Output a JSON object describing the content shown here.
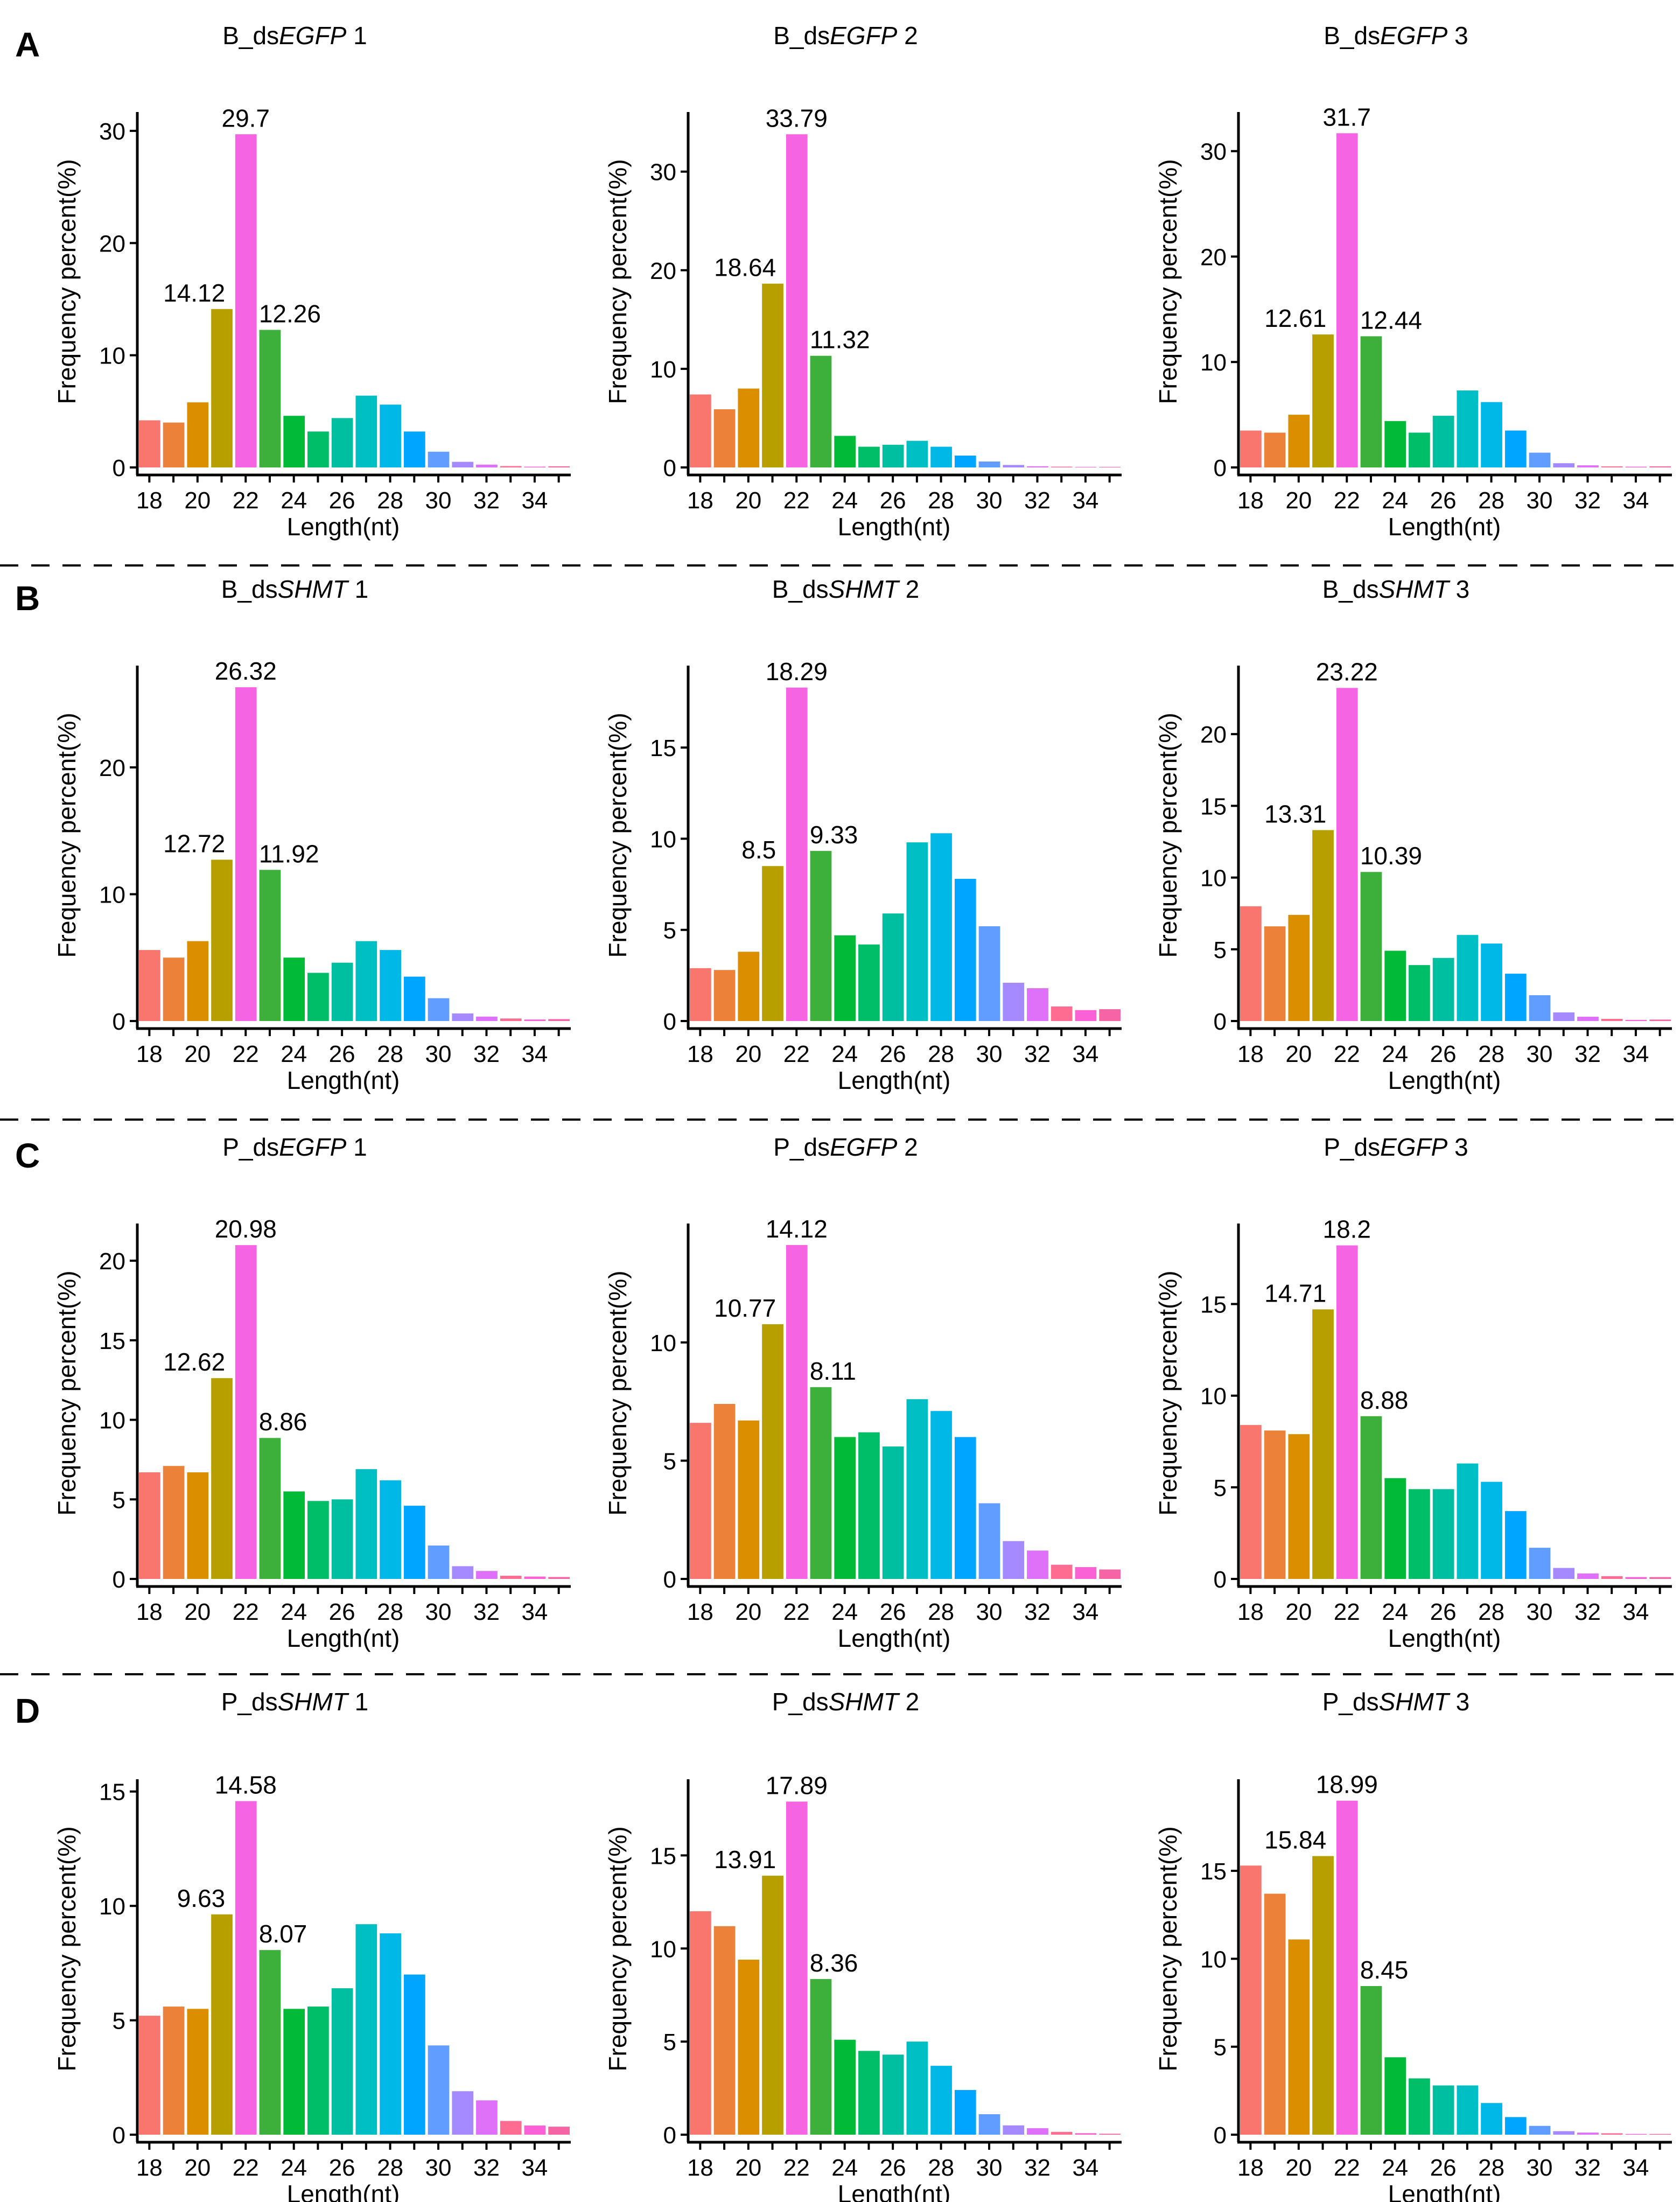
{
  "x_axis_label": "Length(nt)",
  "y_axis_label": "Frequency percent(%)",
  "chart_data": [
    {
      "type": "bar",
      "row": "A",
      "title": "B_dsEGFP 1",
      "title_prefix": "B_ds",
      "title_gene": "EGFP",
      "title_suffix": " 1",
      "show_row_label": true,
      "categories": [
        18,
        19,
        20,
        21,
        22,
        23,
        24,
        25,
        26,
        27,
        28,
        29,
        30,
        31,
        32,
        33,
        34,
        35
      ],
      "values": [
        4.2,
        4.0,
        5.8,
        14.12,
        29.7,
        12.26,
        4.6,
        3.2,
        4.4,
        6.4,
        5.6,
        3.2,
        1.4,
        0.5,
        0.25,
        0.12,
        0.07,
        0.1
      ],
      "labels": {
        "21": "14.12",
        "22": "29.7",
        "23": "12.26"
      },
      "ylim": [
        0,
        31.2
      ],
      "yticks": [
        0,
        10,
        20,
        30
      ],
      "xticks": [
        18,
        20,
        22,
        24,
        26,
        28,
        30,
        32,
        34
      ],
      "xlabel": "Length(nt)",
      "ylabel": "Frequency percent(%)"
    },
    {
      "type": "bar",
      "row": "A",
      "title": "B_dsEGFP 2",
      "title_prefix": "B_ds",
      "title_gene": "EGFP",
      "title_suffix": " 2",
      "show_row_label": false,
      "categories": [
        18,
        19,
        20,
        21,
        22,
        23,
        24,
        25,
        26,
        27,
        28,
        29,
        30,
        31,
        32,
        33,
        34,
        35
      ],
      "values": [
        7.4,
        5.9,
        8.0,
        18.64,
        33.79,
        11.32,
        3.2,
        2.1,
        2.3,
        2.7,
        2.1,
        1.2,
        0.6,
        0.25,
        0.12,
        0.08,
        0.05,
        0.05
      ],
      "labels": {
        "21": "18.64",
        "22": "33.79",
        "23": "11.32"
      },
      "ylim": [
        0,
        35.5
      ],
      "yticks": [
        0,
        10,
        20,
        30
      ],
      "xticks": [
        18,
        20,
        22,
        24,
        26,
        28,
        30,
        32,
        34
      ],
      "xlabel": "Length(nt)",
      "ylabel": "Frequency percent(%)"
    },
    {
      "type": "bar",
      "row": "A",
      "title": "B_dsEGFP 3",
      "title_prefix": "B_ds",
      "title_gene": "EGFP",
      "title_suffix": " 3",
      "show_row_label": false,
      "categories": [
        18,
        19,
        20,
        21,
        22,
        23,
        24,
        25,
        26,
        27,
        28,
        29,
        30,
        31,
        32,
        33,
        34,
        35
      ],
      "values": [
        3.5,
        3.3,
        5.0,
        12.61,
        31.7,
        12.44,
        4.4,
        3.3,
        4.9,
        7.3,
        6.2,
        3.5,
        1.4,
        0.4,
        0.2,
        0.1,
        0.07,
        0.1
      ],
      "labels": {
        "21": "12.61",
        "22": "31.7",
        "23": "12.44"
      },
      "ylim": [
        0,
        33.2
      ],
      "yticks": [
        0,
        10,
        20,
        30
      ],
      "xticks": [
        18,
        20,
        22,
        24,
        26,
        28,
        30,
        32,
        34
      ],
      "xlabel": "Length(nt)",
      "ylabel": "Frequency percent(%)"
    },
    {
      "type": "bar",
      "row": "B",
      "title": "B_dsSHMT 1",
      "title_prefix": "B_ds",
      "title_gene": "SHMT",
      "title_suffix": " 1",
      "show_row_label": true,
      "categories": [
        18,
        19,
        20,
        21,
        22,
        23,
        24,
        25,
        26,
        27,
        28,
        29,
        30,
        31,
        32,
        33,
        34,
        35
      ],
      "values": [
        5.6,
        5.0,
        6.3,
        12.72,
        26.32,
        11.92,
        5.0,
        3.8,
        4.6,
        6.3,
        5.6,
        3.5,
        1.8,
        0.6,
        0.35,
        0.2,
        0.12,
        0.15
      ],
      "labels": {
        "21": "12.72",
        "22": "26.32",
        "23": "11.92"
      },
      "ylim": [
        0,
        27.6
      ],
      "yticks": [
        0,
        10,
        20
      ],
      "xticks": [
        18,
        20,
        22,
        24,
        26,
        28,
        30,
        32,
        34
      ],
      "xlabel": "Length(nt)",
      "ylabel": "Frequency percent(%)"
    },
    {
      "type": "bar",
      "row": "B",
      "title": "B_dsSHMT 2",
      "title_prefix": "B_ds",
      "title_gene": "SHMT",
      "title_suffix": " 2",
      "show_row_label": false,
      "categories": [
        18,
        19,
        20,
        21,
        22,
        23,
        24,
        25,
        26,
        27,
        28,
        29,
        30,
        31,
        32,
        33,
        34,
        35
      ],
      "values": [
        2.9,
        2.8,
        3.8,
        8.5,
        18.29,
        9.33,
        4.7,
        4.2,
        5.9,
        9.8,
        10.3,
        7.8,
        5.2,
        2.1,
        1.8,
        0.8,
        0.6,
        0.65
      ],
      "labels": {
        "21": "8.5",
        "22": "18.29",
        "23": "9.33"
      },
      "ylim": [
        0,
        19.2
      ],
      "yticks": [
        0,
        5,
        10,
        15
      ],
      "xticks": [
        18,
        20,
        22,
        24,
        26,
        28,
        30,
        32,
        34
      ],
      "xlabel": "Length(nt)",
      "ylabel": "Frequency percent(%)"
    },
    {
      "type": "bar",
      "row": "B",
      "title": "B_dsSHMT 3",
      "title_prefix": "B_ds",
      "title_gene": "SHMT",
      "title_suffix": " 3",
      "show_row_label": false,
      "categories": [
        18,
        19,
        20,
        21,
        22,
        23,
        24,
        25,
        26,
        27,
        28,
        29,
        30,
        31,
        32,
        33,
        34,
        35
      ],
      "values": [
        8.0,
        6.6,
        7.4,
        13.31,
        23.22,
        10.39,
        4.9,
        3.9,
        4.4,
        6.0,
        5.4,
        3.3,
        1.8,
        0.6,
        0.3,
        0.15,
        0.08,
        0.1
      ],
      "labels": {
        "21": "13.31",
        "22": "23.22",
        "23": "10.39"
      },
      "ylim": [
        0,
        24.4
      ],
      "yticks": [
        0,
        5,
        10,
        15,
        20
      ],
      "xticks": [
        18,
        20,
        22,
        24,
        26,
        28,
        30,
        32,
        34
      ],
      "xlabel": "Length(nt)",
      "ylabel": "Frequency percent(%)"
    },
    {
      "type": "bar",
      "row": "C",
      "title": "P_dsEGFP 1",
      "title_prefix": "P_ds",
      "title_gene": "EGFP",
      "title_suffix": " 1",
      "show_row_label": true,
      "categories": [
        18,
        19,
        20,
        21,
        22,
        23,
        24,
        25,
        26,
        27,
        28,
        29,
        30,
        31,
        32,
        33,
        34,
        35
      ],
      "values": [
        6.7,
        7.1,
        6.7,
        12.62,
        20.98,
        8.86,
        5.5,
        4.9,
        5.0,
        6.9,
        6.2,
        4.6,
        2.1,
        0.8,
        0.5,
        0.2,
        0.15,
        0.12
      ],
      "labels": {
        "21": "12.62",
        "22": "20.98",
        "23": "8.86"
      },
      "ylim": [
        0,
        22.0
      ],
      "yticks": [
        0,
        5,
        10,
        15,
        20
      ],
      "xticks": [
        18,
        20,
        22,
        24,
        26,
        28,
        30,
        32,
        34
      ],
      "xlabel": "Length(nt)",
      "ylabel": "Frequency percent(%)"
    },
    {
      "type": "bar",
      "row": "C",
      "title": "P_dsEGFP 2",
      "title_prefix": "P_ds",
      "title_gene": "EGFP",
      "title_suffix": " 2",
      "show_row_label": false,
      "categories": [
        18,
        19,
        20,
        21,
        22,
        23,
        24,
        25,
        26,
        27,
        28,
        29,
        30,
        31,
        32,
        33,
        34,
        35
      ],
      "values": [
        6.6,
        7.4,
        6.7,
        10.77,
        14.12,
        8.11,
        6.0,
        6.2,
        5.6,
        7.6,
        7.1,
        6.0,
        3.2,
        1.6,
        1.2,
        0.6,
        0.5,
        0.4
      ],
      "labels": {
        "21": "10.77",
        "22": "14.12",
        "23": "8.11"
      },
      "ylim": [
        0,
        14.8
      ],
      "yticks": [
        0,
        5,
        10
      ],
      "xticks": [
        18,
        20,
        22,
        24,
        26,
        28,
        30,
        32,
        34
      ],
      "xlabel": "Length(nt)",
      "ylabel": "Frequency percent(%)"
    },
    {
      "type": "bar",
      "row": "C",
      "title": "P_dsEGFP 3",
      "title_prefix": "P_ds",
      "title_gene": "EGFP",
      "title_suffix": " 3",
      "show_row_label": false,
      "categories": [
        18,
        19,
        20,
        21,
        22,
        23,
        24,
        25,
        26,
        27,
        28,
        29,
        30,
        31,
        32,
        33,
        34,
        35
      ],
      "values": [
        8.4,
        8.1,
        7.9,
        14.71,
        18.2,
        8.88,
        5.5,
        4.9,
        4.9,
        6.3,
        5.3,
        3.7,
        1.7,
        0.6,
        0.3,
        0.15,
        0.1,
        0.1
      ],
      "labels": {
        "21": "14.71",
        "22": "18.2",
        "23": "8.88"
      },
      "ylim": [
        0,
        19.1
      ],
      "yticks": [
        0,
        5,
        10,
        15
      ],
      "xticks": [
        18,
        20,
        22,
        24,
        26,
        28,
        30,
        32,
        34
      ],
      "xlabel": "Length(nt)",
      "ylabel": "Frequency percent(%)"
    },
    {
      "type": "bar",
      "row": "D",
      "title": "P_dsSHMT 1",
      "title_prefix": "P_ds",
      "title_gene": "SHMT",
      "title_suffix": " 1",
      "show_row_label": true,
      "categories": [
        18,
        19,
        20,
        21,
        22,
        23,
        24,
        25,
        26,
        27,
        28,
        29,
        30,
        31,
        32,
        33,
        34,
        35
      ],
      "values": [
        5.2,
        5.6,
        5.5,
        9.63,
        14.58,
        8.07,
        5.5,
        5.6,
        6.4,
        9.2,
        8.8,
        7.0,
        3.9,
        1.9,
        1.5,
        0.6,
        0.4,
        0.35
      ],
      "labels": {
        "21": "9.63",
        "22": "14.58",
        "23": "8.07"
      },
      "ylim": [
        0,
        15.3
      ],
      "yticks": [
        0,
        5,
        10,
        15
      ],
      "xticks": [
        18,
        20,
        22,
        24,
        26,
        28,
        30,
        32,
        34
      ],
      "xlabel": "Length(nt)",
      "ylabel": "Frequency percent(%)"
    },
    {
      "type": "bar",
      "row": "D",
      "title": "P_dsSHMT 2",
      "title_prefix": "P_ds",
      "title_gene": "SHMT",
      "title_suffix": " 2",
      "show_row_label": false,
      "categories": [
        18,
        19,
        20,
        21,
        22,
        23,
        24,
        25,
        26,
        27,
        28,
        29,
        30,
        31,
        32,
        33,
        34,
        35
      ],
      "values": [
        12.0,
        11.2,
        9.4,
        13.91,
        17.89,
        8.36,
        5.1,
        4.5,
        4.3,
        5.0,
        3.7,
        2.4,
        1.1,
        0.5,
        0.35,
        0.15,
        0.08,
        0.05
      ],
      "labels": {
        "21": "13.91",
        "22": "17.89",
        "23": "8.36"
      },
      "ylim": [
        0,
        18.8
      ],
      "yticks": [
        0,
        5,
        10,
        15
      ],
      "xticks": [
        18,
        20,
        22,
        24,
        26,
        28,
        30,
        32,
        34
      ],
      "xlabel": "Length(nt)",
      "ylabel": "Frequency percent(%)"
    },
    {
      "type": "bar",
      "row": "D",
      "title": "P_dsSHMT 3",
      "title_prefix": "P_ds",
      "title_gene": "SHMT",
      "title_suffix": " 3",
      "show_row_label": false,
      "categories": [
        18,
        19,
        20,
        21,
        22,
        23,
        24,
        25,
        26,
        27,
        28,
        29,
        30,
        31,
        32,
        33,
        34,
        35
      ],
      "values": [
        15.3,
        13.7,
        11.1,
        15.84,
        18.99,
        8.45,
        4.4,
        3.2,
        2.8,
        2.8,
        1.8,
        1.0,
        0.5,
        0.2,
        0.12,
        0.08,
        0.04,
        0.04
      ],
      "labels": {
        "21": "15.84",
        "22": "18.99",
        "23": "8.45"
      },
      "ylim": [
        0,
        19.9
      ],
      "yticks": [
        0,
        5,
        10,
        15
      ],
      "xticks": [
        18,
        20,
        22,
        24,
        26,
        28,
        30,
        32,
        34
      ],
      "xlabel": "Length(nt)",
      "ylabel": "Frequency percent(%)"
    }
  ],
  "bar_colors": [
    "#F8766D",
    "#EC8239",
    "#DB8E00",
    "#B79F00",
    "#F564E3",
    "#3CB03A",
    "#00BA38",
    "#00BE67",
    "#00BFA1",
    "#00BFC4",
    "#00B8E7",
    "#00A5FF",
    "#619CFF",
    "#A58AFF",
    "#DF70F8",
    "#FF6C91",
    "#FB61D7",
    "#F664A5"
  ],
  "highlight_color_22": "#F564E3"
}
